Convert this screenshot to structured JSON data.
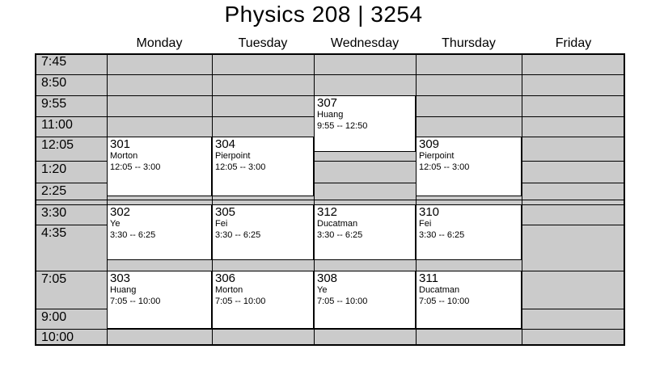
{
  "title": "Physics 208 | 3254",
  "colors": {
    "grid_fill": "#cbcbcb",
    "grid_line": "#000000",
    "block_fill": "#ffffff",
    "block_border": "#000000",
    "text": "#000000",
    "background": "#ffffff"
  },
  "chart_data": {
    "type": "table",
    "title": "Physics 208 | 3254",
    "columns": [
      "Monday",
      "Tuesday",
      "Wednesday",
      "Thursday",
      "Friday"
    ],
    "time_rows": [
      "7:45",
      "8:50",
      "9:55",
      "11:00",
      "12:05",
      "1:20",
      "2:25",
      "3:30",
      "4:35",
      "7:05",
      "9:00",
      "10:00"
    ],
    "sections": [
      {
        "number": "301",
        "instructor": "Morton",
        "time_range": "12:05 -- 3:00",
        "day": "Monday",
        "start": "12:05",
        "end": "3:00"
      },
      {
        "number": "302",
        "instructor": "Ye",
        "time_range": "3:30 -- 6:25",
        "day": "Monday",
        "start": "3:30",
        "end": "6:25"
      },
      {
        "number": "303",
        "instructor": "Huang",
        "time_range": "7:05 -- 10:00",
        "day": "Monday",
        "start": "7:05",
        "end": "10:00"
      },
      {
        "number": "304",
        "instructor": "Pierpoint",
        "time_range": "12:05 -- 3:00",
        "day": "Tuesday",
        "start": "12:05",
        "end": "3:00"
      },
      {
        "number": "305",
        "instructor": "Fei",
        "time_range": "3:30 -- 6:25",
        "day": "Tuesday",
        "start": "3:30",
        "end": "6:25"
      },
      {
        "number": "306",
        "instructor": "Morton",
        "time_range": "7:05 -- 10:00",
        "day": "Tuesday",
        "start": "7:05",
        "end": "10:00"
      },
      {
        "number": "307",
        "instructor": "Huang",
        "time_range": "9:55 -- 12:50",
        "day": "Wednesday",
        "start": "9:55",
        "end": "12:50"
      },
      {
        "number": "312",
        "instructor": "Ducatman",
        "time_range": "3:30 -- 6:25",
        "day": "Wednesday",
        "start": "3:30",
        "end": "6:25"
      },
      {
        "number": "308",
        "instructor": "Ye",
        "time_range": "7:05 -- 10:00",
        "day": "Wednesday",
        "start": "7:05",
        "end": "10:00"
      },
      {
        "number": "309",
        "instructor": "Pierpoint",
        "time_range": "12:05 -- 3:00",
        "day": "Thursday",
        "start": "12:05",
        "end": "3:00"
      },
      {
        "number": "310",
        "instructor": "Fei",
        "time_range": "3:30 -- 6:25",
        "day": "Thursday",
        "start": "3:30",
        "end": "6:25"
      },
      {
        "number": "311",
        "instructor": "Ducatman",
        "time_range": "7:05 -- 10:00",
        "day": "Thursday",
        "start": "7:05",
        "end": "10:00"
      }
    ]
  }
}
